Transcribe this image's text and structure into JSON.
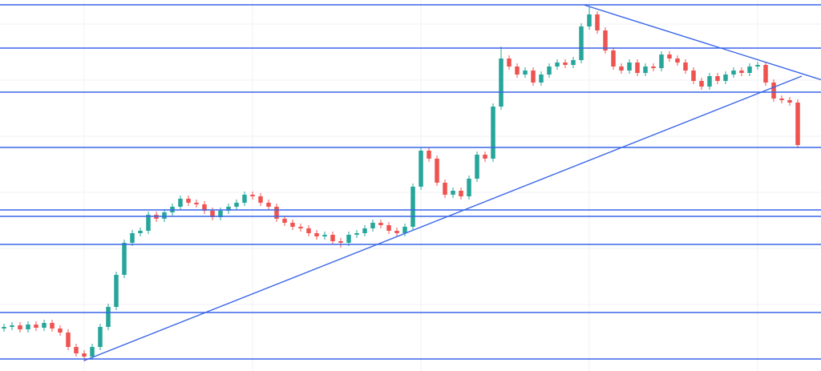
{
  "chart_data": {
    "type": "candlestick",
    "up_color": "#26a69a",
    "down_color": "#ef5350",
    "line_color": "#3a66e8",
    "xlim": [
      -0.5,
      101.9
    ],
    "ylim": [
      0,
      463
    ],
    "open": [
      53,
      55,
      57,
      52,
      58,
      54,
      60,
      53,
      48,
      30,
      22,
      18,
      30,
      55,
      80,
      120,
      160,
      172,
      175,
      195,
      190,
      198,
      205,
      215,
      210,
      208,
      200,
      192,
      200,
      205,
      210,
      220,
      218,
      210,
      205,
      190,
      185,
      180,
      178,
      172,
      168,
      170,
      162,
      160,
      170,
      172,
      178,
      185,
      182,
      175,
      172,
      180,
      230,
      275,
      265,
      235,
      220,
      225,
      218,
      240,
      270,
      265,
      330,
      390,
      380,
      370,
      375,
      360,
      370,
      380,
      385,
      382,
      388,
      430,
      445,
      425,
      400,
      380,
      375,
      385,
      372,
      380,
      378,
      395,
      390,
      385,
      375,
      362,
      355,
      368,
      362,
      370,
      375,
      372,
      380,
      382,
      360,
      340,
      338,
      335
    ],
    "high": [
      59,
      61,
      61,
      62,
      62,
      64,
      64,
      57,
      52,
      34,
      26,
      34,
      59,
      84,
      124,
      164,
      176,
      179,
      199,
      199,
      202,
      209,
      219,
      219,
      214,
      212,
      204,
      204,
      209,
      214,
      224,
      224,
      222,
      214,
      209,
      194,
      189,
      184,
      182,
      176,
      174,
      174,
      166,
      174,
      176,
      182,
      189,
      189,
      186,
      179,
      184,
      234,
      279,
      279,
      269,
      239,
      229,
      229,
      244,
      274,
      274,
      334,
      405,
      394,
      384,
      379,
      379,
      374,
      384,
      389,
      389,
      392,
      434,
      455,
      449,
      429,
      404,
      384,
      389,
      389,
      384,
      384,
      399,
      399,
      394,
      389,
      379,
      366,
      372,
      372,
      374,
      379,
      379,
      384,
      386,
      386,
      364,
      344,
      342,
      339
    ],
    "low": [
      49,
      51,
      48,
      48,
      50,
      50,
      49,
      44,
      26,
      18,
      12,
      14,
      26,
      51,
      76,
      116,
      156,
      168,
      171,
      186,
      186,
      194,
      201,
      206,
      204,
      196,
      188,
      188,
      196,
      201,
      206,
      214,
      206,
      201,
      186,
      181,
      176,
      174,
      168,
      164,
      164,
      158,
      154,
      156,
      166,
      168,
      174,
      178,
      171,
      168,
      168,
      176,
      226,
      261,
      231,
      216,
      216,
      214,
      214,
      236,
      261,
      261,
      326,
      376,
      366,
      366,
      356,
      356,
      366,
      376,
      378,
      378,
      384,
      426,
      421,
      396,
      376,
      371,
      371,
      368,
      368,
      374,
      374,
      386,
      381,
      371,
      358,
      351,
      351,
      358,
      358,
      366,
      368,
      368,
      376,
      356,
      336,
      334,
      331,
      278
    ],
    "close": [
      55,
      57,
      52,
      58,
      54,
      60,
      53,
      48,
      30,
      22,
      18,
      30,
      55,
      80,
      120,
      160,
      172,
      175,
      195,
      190,
      198,
      205,
      215,
      210,
      208,
      200,
      192,
      200,
      205,
      210,
      220,
      218,
      210,
      205,
      190,
      185,
      180,
      178,
      172,
      168,
      170,
      162,
      160,
      170,
      172,
      178,
      185,
      182,
      175,
      172,
      180,
      230,
      275,
      265,
      235,
      220,
      225,
      218,
      240,
      270,
      265,
      330,
      390,
      380,
      370,
      375,
      360,
      370,
      380,
      385,
      382,
      388,
      430,
      445,
      425,
      400,
      380,
      375,
      385,
      372,
      380,
      378,
      395,
      390,
      385,
      375,
      362,
      355,
      368,
      362,
      370,
      375,
      372,
      380,
      382,
      360,
      340,
      338,
      335,
      282
    ],
    "levels": [
      457,
      403,
      348,
      279,
      201,
      193,
      158,
      73,
      15
    ],
    "trendlines": [
      {
        "x": [
          10,
          99.5
        ],
        "y": [
          13,
          368
        ]
      },
      {
        "x": [
          72.3,
          102.4
        ],
        "y": [
          457,
          362
        ]
      }
    ]
  }
}
